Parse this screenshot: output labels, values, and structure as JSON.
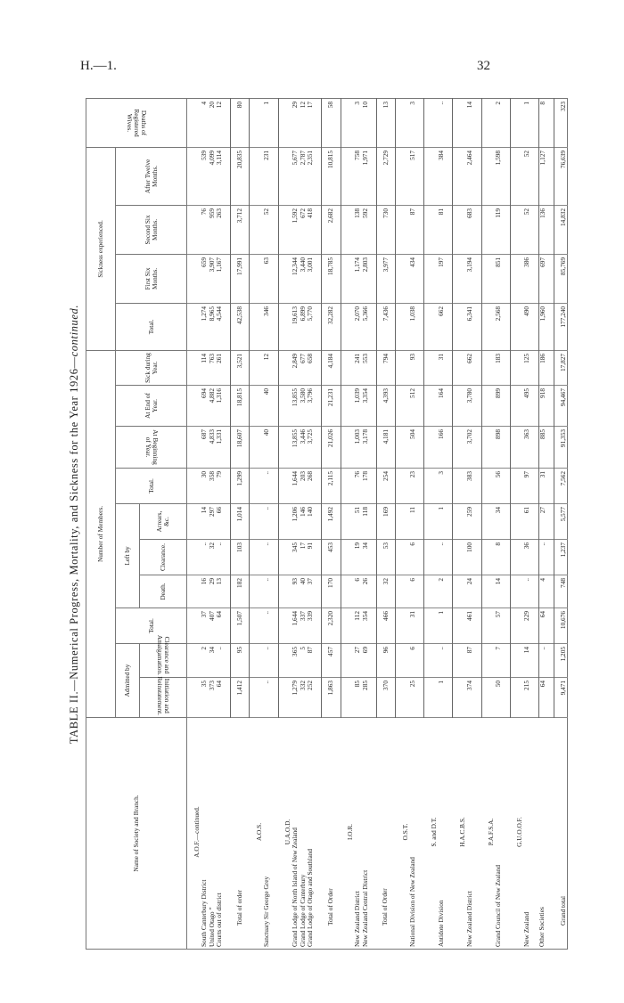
{
  "page_header": {
    "reference": "H.—1.",
    "page_number": "32"
  },
  "title": {
    "main": "TABLE II.—Numerical Progress, Mortality, and Sickness for the Year 1926—",
    "suffix": "continued."
  },
  "headers": {
    "name": "Name of Society and Branch.",
    "number_of_members": "Number of Members.",
    "sickness_experienced": "Sickness experienced.",
    "admitted_by": "Admitted by",
    "left_by": "Left by",
    "initiation": "Initiation and Reinstatement.",
    "clearance_amalgamation": "Clearance and Amalgamation.",
    "total_admitted": "Total.",
    "death": "Death.",
    "clearance": "Clearance.",
    "arrears": "Arrears, &c.",
    "total_left": "Total.",
    "at_beginning": "At Beginning of Year.",
    "at_end": "At End of Year.",
    "sick_during": "Sick during Year.",
    "sickness_total": "Total.",
    "first_six": "First Six Months.",
    "second_six": "Second Six Months.",
    "after_twelve": "After Twelve Months.",
    "deaths_wives": "Deaths of Registered Wives."
  },
  "rows": [
    {
      "kind": "heading",
      "name": "A.O.F.—continued."
    },
    {
      "kind": "data",
      "name": "South Canterbury District",
      "values": [
        "35",
        "2",
        "37",
        "16",
        "..",
        "14",
        "30",
        "687",
        "694",
        "114",
        "1,274",
        "659",
        "76",
        "539",
        "4"
      ]
    },
    {
      "kind": "data",
      "name": "United Otago ”",
      "values": [
        "373",
        "34",
        "407",
        "29",
        "32",
        "297",
        "358",
        "4,833",
        "4,882",
        "763",
        "8,965",
        "3,907",
        "959",
        "4,099",
        "20"
      ]
    },
    {
      "kind": "data last",
      "name": "Courts out of district",
      "values": [
        "64",
        "..",
        "64",
        "13",
        "..",
        "66",
        "79",
        "1,331",
        "1,316",
        "261",
        "4,544",
        "1,167",
        "263",
        "3,114",
        "12"
      ]
    },
    {
      "kind": "total",
      "name": "Total of order",
      "values": [
        "1,412",
        "95",
        "1,507",
        "182",
        "103",
        "1,014",
        "1,299",
        "18,607",
        "18,815",
        "3,521",
        "42,538",
        "17,991",
        "3,712",
        "20,835",
        "80"
      ]
    },
    {
      "kind": "heading",
      "name": "A.O.S."
    },
    {
      "kind": "data last",
      "name": "Sanctuary Sir George Grey",
      "values": [
        "..",
        "..",
        "..",
        "..",
        "..",
        "..",
        "..",
        "40",
        "40",
        "12",
        "346",
        "63",
        "52",
        "231",
        "1"
      ]
    },
    {
      "kind": "heading",
      "name": "U.A.O.D."
    },
    {
      "kind": "data",
      "name": "Grand Lodge of North Island of New Zealand",
      "values": [
        "1,279",
        "365",
        "1,644",
        "93",
        "345",
        "1,206",
        "1,644",
        "13,855",
        "13,855",
        "2,849",
        "19,613",
        "12,344",
        "1,592",
        "5,677",
        "29"
      ]
    },
    {
      "kind": "data",
      "name": "Grand Lodge of Canterbury",
      "values": [
        "332",
        "5",
        "337",
        "40",
        "17",
        "146",
        "203",
        "3,446",
        "3,580",
        "677",
        "6,899",
        "3,440",
        "672",
        "2,787",
        "12"
      ]
    },
    {
      "kind": "data last",
      "name": "Grand Lodge of Otago and Southland",
      "values": [
        "252",
        "87",
        "339",
        "37",
        "91",
        "140",
        "268",
        "3,725",
        "3,796",
        "658",
        "5,770",
        "3,001",
        "418",
        "2,351",
        "17"
      ]
    },
    {
      "kind": "total",
      "name": "Total of Order",
      "values": [
        "1,863",
        "457",
        "2,320",
        "170",
        "453",
        "1,492",
        "2,115",
        "21,026",
        "21,231",
        "4,184",
        "32,282",
        "18,785",
        "2,682",
        "10,815",
        "58"
      ]
    },
    {
      "kind": "heading",
      "name": "I.O.R."
    },
    {
      "kind": "data",
      "name": "New Zealand District",
      "values": [
        "85",
        "27",
        "112",
        "6",
        "19",
        "51",
        "76",
        "1,003",
        "1,039",
        "241",
        "2,070",
        "1,174",
        "138",
        "758",
        "3"
      ]
    },
    {
      "kind": "data last",
      "name": "New Zealand Central District",
      "values": [
        "285",
        "69",
        "354",
        "26",
        "34",
        "118",
        "178",
        "3,178",
        "3,354",
        "553",
        "5,366",
        "2,803",
        "592",
        "1,971",
        "10"
      ]
    },
    {
      "kind": "total",
      "name": "Total of Order",
      "values": [
        "370",
        "96",
        "466",
        "32",
        "53",
        "169",
        "254",
        "4,181",
        "4,393",
        "794",
        "7,436",
        "3,977",
        "730",
        "2,729",
        "13"
      ]
    },
    {
      "kind": "heading",
      "name": "O.S.T."
    },
    {
      "kind": "data last",
      "name": "National Division of New Zealand",
      "values": [
        "25",
        "6",
        "31",
        "6",
        "6",
        "11",
        "23",
        "504",
        "512",
        "93",
        "1,038",
        "434",
        "87",
        "517",
        "3"
      ]
    },
    {
      "kind": "heading",
      "name": "S. and D.T."
    },
    {
      "kind": "data last",
      "name": "Antidote Division",
      "values": [
        "1",
        "..",
        "1",
        "2",
        "..",
        "1",
        "3",
        "166",
        "164",
        "31",
        "662",
        "197",
        "81",
        "384",
        ".."
      ]
    },
    {
      "kind": "heading",
      "name": "H.A.C.B.S."
    },
    {
      "kind": "data last",
      "name": "New Zealand District",
      "values": [
        "374",
        "87",
        "461",
        "24",
        "100",
        "259",
        "383",
        "3,702",
        "3,780",
        "662",
        "6,341",
        "3,194",
        "683",
        "2,464",
        "14"
      ]
    },
    {
      "kind": "heading",
      "name": "P.A.F.S.A."
    },
    {
      "kind": "data last",
      "name": "Grand Council of New Zealand",
      "values": [
        "50",
        "7",
        "57",
        "14",
        "8",
        "34",
        "56",
        "898",
        "899",
        "183",
        "2,568",
        "851",
        "119",
        "1,598",
        "2"
      ]
    },
    {
      "kind": "heading",
      "name": "G.U.O.O.F."
    },
    {
      "kind": "data last",
      "name": "New Zealand",
      "values": [
        "215",
        "14",
        "229",
        "..",
        "36",
        "61",
        "97",
        "363",
        "495",
        "125",
        "490",
        "386",
        "52",
        "52",
        "1"
      ]
    },
    {
      "kind": "data last",
      "name": "Other Societies",
      "values": [
        "64",
        "..",
        "64",
        "4",
        "..",
        "27",
        "31",
        "885",
        "918",
        "186",
        "1,960",
        "697",
        "136",
        "1,127",
        "8"
      ]
    },
    {
      "kind": "grand",
      "name": "Grand total",
      "values": [
        "9,471",
        "1,205",
        "10,676",
        "748",
        "1,237",
        "5,577",
        "7,562",
        "91,353",
        "94,467",
        "17,827",
        "177,240",
        "85,769",
        "14,832",
        "76,639",
        "323"
      ]
    }
  ]
}
